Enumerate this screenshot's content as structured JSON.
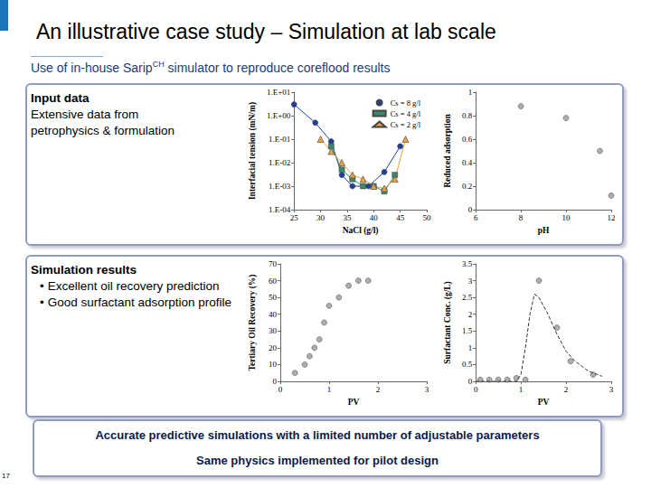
{
  "slide": {
    "title": "An illustrative case study – Simulation at lab scale",
    "subtitle": {
      "before": "Use of in-house Sarip",
      "superscript": "CH",
      "after": " simulator to reproduce coreflood results"
    },
    "panels": [
      {
        "heading": "Input data",
        "lines": [
          "Extensive data from",
          "petrophysics & formulation"
        ]
      },
      {
        "heading": "Simulation results",
        "bullets": [
          "Excellent oil recovery prediction",
          "Good surfactant adsorption profile"
        ]
      }
    ],
    "footer": [
      "Accurate predictive simulations with a limited number of adjustable parameters",
      "Same physics implemented for pilot design"
    ],
    "page": "17"
  },
  "chart_data": [
    {
      "type": "line",
      "x_label": "NaCl (g/l)",
      "y_label": "Interfacial tension (mN/m)",
      "log": "y",
      "grid": false,
      "legend": "upper right",
      "xlim": [
        25,
        50
      ],
      "xticks": [
        25,
        30,
        35,
        40,
        45,
        50
      ],
      "ylim": [
        0.0001,
        10
      ],
      "yticks": [
        {
          "value": 0.0001,
          "label": "1.E-04"
        },
        {
          "value": 0.001,
          "label": "1.E-03"
        },
        {
          "value": 0.01,
          "label": "1.E-02"
        },
        {
          "value": 0.1,
          "label": "1.E-01"
        },
        {
          "value": 1,
          "label": "1.E+00"
        },
        {
          "value": 10,
          "label": "1.E+01"
        }
      ],
      "series": [
        {
          "name": "Cs = 8 g/l",
          "color": "#1f3f9f",
          "marker": "circle",
          "x": [
            25,
            29,
            32,
            34,
            36,
            39,
            42,
            45
          ],
          "values": [
            3,
            0.5,
            0.08,
            0.003,
            0.001,
            0.001,
            0.004,
            0.05
          ]
        },
        {
          "name": "Cs = 4 g/l",
          "color": "#3a8a6a",
          "marker": "rect",
          "x": [
            32,
            34,
            36,
            38,
            40,
            42,
            44
          ],
          "values": [
            0.05,
            0.005,
            0.002,
            0.001,
            0.001,
            0.0006,
            0.003
          ]
        },
        {
          "name": "Cs = 2 g/l",
          "color": "#e8a040",
          "marker": "triangle",
          "x": [
            30,
            32,
            34,
            36,
            38,
            40,
            42,
            44,
            46
          ],
          "values": [
            0.1,
            0.03,
            0.01,
            0.003,
            0.002,
            0.001,
            0.0008,
            0.002,
            0.1
          ]
        }
      ]
    },
    {
      "type": "scatter",
      "x_label": "pH",
      "y_label": "Reduced adsorption",
      "grid": false,
      "xlim": [
        6,
        12
      ],
      "xticks": [
        6,
        8,
        10,
        12
      ],
      "ylim": [
        0,
        1
      ],
      "yticks": [
        0,
        0.2,
        0.4,
        0.6,
        0.8,
        1
      ],
      "series": [
        {
          "color": "#999999",
          "marker": "circle",
          "x": [
            8,
            10,
            11.5,
            12
          ],
          "values": [
            0.88,
            0.78,
            0.5,
            0.12
          ]
        }
      ]
    },
    {
      "type": "scatter",
      "x_label": "PV",
      "y_label": "Tertiary Oil Recovery (%)",
      "grid": false,
      "xlim": [
        0,
        3
      ],
      "xticks": [
        0,
        1,
        2,
        3
      ],
      "ylim": [
        0,
        70
      ],
      "yticks": [
        0,
        10,
        20,
        30,
        40,
        50,
        60,
        70
      ],
      "series": [
        {
          "color": "#999999",
          "marker": "circle",
          "x": [
            0.3,
            0.5,
            0.6,
            0.7,
            0.8,
            0.9,
            1.0,
            1.2,
            1.4,
            1.6,
            1.8
          ],
          "values": [
            5,
            10,
            15,
            20,
            25,
            35,
            45,
            50,
            57,
            60,
            60
          ]
        }
      ]
    },
    {
      "type": "scatter",
      "x_label": "PV",
      "y_label": "Surfactant Conc. (g/L)",
      "grid": false,
      "xlim": [
        0,
        3
      ],
      "xticks": [
        0,
        1,
        2,
        3
      ],
      "ylim": [
        0,
        3.5
      ],
      "yticks": [
        0,
        0.5,
        1,
        1.5,
        2,
        2.5,
        3,
        3.5
      ],
      "series": [
        {
          "type": "scatter",
          "color": "#999999",
          "marker": "circle",
          "x": [
            0.1,
            0.3,
            0.5,
            0.7,
            0.9,
            1.1,
            1.4,
            1.8,
            2.1,
            2.6
          ],
          "values": [
            0.05,
            0.05,
            0.05,
            0.05,
            0.1,
            0.05,
            3.0,
            1.6,
            0.6,
            0.2
          ]
        },
        {
          "type": "line",
          "color": "#333333",
          "line_style": "dashed",
          "x": [
            0,
            0.9,
            1.0,
            1.1,
            1.2,
            1.3,
            1.4,
            1.6,
            1.8,
            2.0,
            2.2,
            2.5,
            2.8
          ],
          "values": [
            0,
            0,
            0.2,
            1.0,
            2.0,
            2.6,
            2.5,
            2.0,
            1.4,
            0.9,
            0.6,
            0.3,
            0.15
          ]
        }
      ]
    }
  ]
}
